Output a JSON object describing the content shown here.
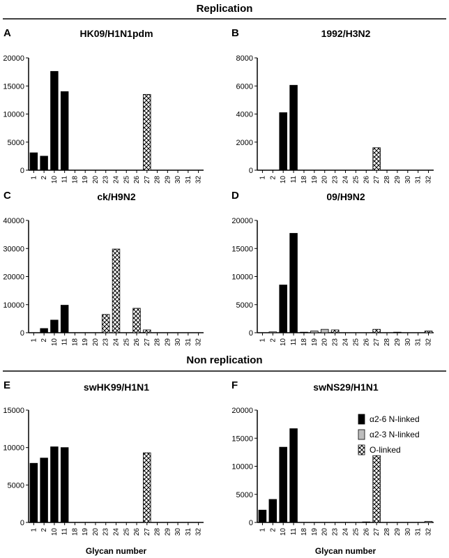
{
  "sections": [
    {
      "title": "Replication"
    },
    {
      "title": "Non replication"
    }
  ],
  "legend": {
    "items": [
      {
        "label": "α2-6 N-linked",
        "fill": "#000000"
      },
      {
        "label": "α2-3 N-linked",
        "fill": "#bdbdbd"
      },
      {
        "label": "O-linked",
        "fill": "hatch"
      }
    ]
  },
  "chart_data": [
    {
      "type": "bar",
      "panel": "A",
      "title": "HK09/H1N1pdm",
      "categories": [
        "1",
        "2",
        "10",
        "11",
        "18",
        "19",
        "20",
        "23",
        "24",
        "25",
        "26",
        "27",
        "28",
        "29",
        "30",
        "31",
        "32"
      ],
      "ylim": [
        0,
        20000
      ],
      "yticks": [
        0,
        5000,
        10000,
        15000,
        20000
      ],
      "xlabel": "",
      "series": [
        {
          "kind": "a26",
          "values": [
            3100,
            2500,
            17600,
            14000,
            0,
            0,
            0,
            0,
            0,
            0,
            0,
            0,
            0,
            0,
            0,
            0,
            0
          ]
        },
        {
          "kind": "a23",
          "values": [
            0,
            0,
            0,
            0,
            0,
            0,
            0,
            0,
            0,
            0,
            0,
            0,
            0,
            0,
            0,
            0,
            0
          ]
        },
        {
          "kind": "o",
          "values": [
            0,
            0,
            0,
            0,
            0,
            0,
            0,
            0,
            0,
            0,
            0,
            13500,
            0,
            0,
            0,
            0,
            0
          ]
        }
      ]
    },
    {
      "type": "bar",
      "panel": "B",
      "title": "1992/H3N2",
      "categories": [
        "1",
        "2",
        "10",
        "11",
        "18",
        "19",
        "20",
        "23",
        "24",
        "25",
        "26",
        "27",
        "28",
        "29",
        "30",
        "31",
        "32"
      ],
      "ylim": [
        0,
        8000
      ],
      "yticks": [
        0,
        2000,
        4000,
        6000,
        8000
      ],
      "xlabel": "",
      "series": [
        {
          "kind": "a26",
          "values": [
            0,
            0,
            4100,
            6050,
            0,
            0,
            0,
            0,
            0,
            0,
            0,
            0,
            0,
            0,
            0,
            0,
            0
          ]
        },
        {
          "kind": "a23",
          "values": [
            0,
            0,
            0,
            0,
            0,
            0,
            0,
            0,
            0,
            0,
            0,
            0,
            0,
            0,
            0,
            0,
            0
          ]
        },
        {
          "kind": "o",
          "values": [
            0,
            0,
            0,
            0,
            0,
            0,
            0,
            0,
            0,
            0,
            0,
            1600,
            0,
            0,
            0,
            0,
            0
          ]
        }
      ]
    },
    {
      "type": "bar",
      "panel": "C",
      "title": "ck/H9N2",
      "categories": [
        "1",
        "2",
        "10",
        "11",
        "18",
        "19",
        "20",
        "23",
        "24",
        "25",
        "26",
        "27",
        "28",
        "29",
        "30",
        "31",
        "32"
      ],
      "ylim": [
        0,
        40000
      ],
      "yticks": [
        0,
        10000,
        20000,
        30000,
        40000
      ],
      "xlabel": "",
      "series": [
        {
          "kind": "a26",
          "values": [
            0,
            1500,
            4500,
            9800,
            0,
            0,
            0,
            0,
            0,
            0,
            0,
            0,
            0,
            0,
            0,
            0,
            0
          ]
        },
        {
          "kind": "a23",
          "values": [
            0,
            0,
            0,
            0,
            0,
            0,
            0,
            0,
            0,
            0,
            0,
            0,
            0,
            0,
            0,
            0,
            0
          ]
        },
        {
          "kind": "o",
          "values": [
            0,
            0,
            0,
            0,
            0,
            0,
            0,
            6500,
            29800,
            0,
            8700,
            1000,
            0,
            0,
            0,
            0,
            0
          ]
        }
      ]
    },
    {
      "type": "bar",
      "panel": "D",
      "title": "09/H9N2",
      "categories": [
        "1",
        "2",
        "10",
        "11",
        "18",
        "19",
        "20",
        "23",
        "24",
        "25",
        "26",
        "27",
        "28",
        "29",
        "30",
        "31",
        "32"
      ],
      "ylim": [
        0,
        20000
      ],
      "yticks": [
        0,
        5000,
        10000,
        15000,
        20000
      ],
      "xlabel": "",
      "series": [
        {
          "kind": "a26",
          "values": [
            0,
            0,
            8500,
            17700,
            0,
            0,
            0,
            0,
            0,
            0,
            0,
            0,
            0,
            0,
            0,
            0,
            0
          ]
        },
        {
          "kind": "a23",
          "values": [
            0,
            150,
            0,
            0,
            100,
            300,
            600,
            300,
            0,
            0,
            0,
            0,
            0,
            0,
            0,
            0,
            0
          ]
        },
        {
          "kind": "o",
          "values": [
            0,
            0,
            0,
            0,
            0,
            0,
            0,
            500,
            0,
            0,
            0,
            600,
            0,
            100,
            0,
            0,
            300
          ]
        }
      ]
    },
    {
      "type": "bar",
      "panel": "E",
      "title": "swHK99/H1N1",
      "categories": [
        "1",
        "2",
        "10",
        "11",
        "18",
        "19",
        "20",
        "23",
        "24",
        "25",
        "26",
        "27",
        "28",
        "29",
        "30",
        "31",
        "32"
      ],
      "ylim": [
        0,
        15000
      ],
      "yticks": [
        0,
        5000,
        10000,
        15000
      ],
      "xlabel": "Glycan number",
      "series": [
        {
          "kind": "a26",
          "values": [
            7900,
            8600,
            10100,
            10000,
            0,
            0,
            0,
            0,
            0,
            0,
            0,
            0,
            0,
            0,
            0,
            0,
            0
          ]
        },
        {
          "kind": "a23",
          "values": [
            0,
            0,
            0,
            0,
            0,
            0,
            0,
            0,
            0,
            0,
            0,
            0,
            0,
            0,
            0,
            0,
            0
          ]
        },
        {
          "kind": "o",
          "values": [
            0,
            0,
            0,
            0,
            0,
            0,
            0,
            0,
            0,
            0,
            0,
            9300,
            0,
            0,
            0,
            0,
            0
          ]
        }
      ]
    },
    {
      "type": "bar",
      "panel": "F",
      "title": "swNS29/H1N1",
      "categories": [
        "1",
        "2",
        "10",
        "11",
        "18",
        "19",
        "20",
        "23",
        "24",
        "25",
        "26",
        "27",
        "28",
        "29",
        "30",
        "31",
        "32"
      ],
      "ylim": [
        0,
        20000
      ],
      "yticks": [
        0,
        5000,
        10000,
        15000,
        20000
      ],
      "xlabel": "Glycan number",
      "series": [
        {
          "kind": "a26",
          "values": [
            2200,
            4100,
            13400,
            16700,
            0,
            0,
            0,
            0,
            0,
            0,
            0,
            0,
            0,
            0,
            0,
            0,
            0
          ]
        },
        {
          "kind": "a23",
          "values": [
            0,
            0,
            0,
            0,
            0,
            0,
            0,
            0,
            0,
            0,
            100,
            0,
            0,
            0,
            0,
            0,
            200
          ]
        },
        {
          "kind": "o",
          "values": [
            0,
            0,
            0,
            0,
            0,
            0,
            0,
            0,
            0,
            0,
            0,
            11900,
            0,
            0,
            0,
            0,
            0
          ]
        }
      ]
    }
  ]
}
